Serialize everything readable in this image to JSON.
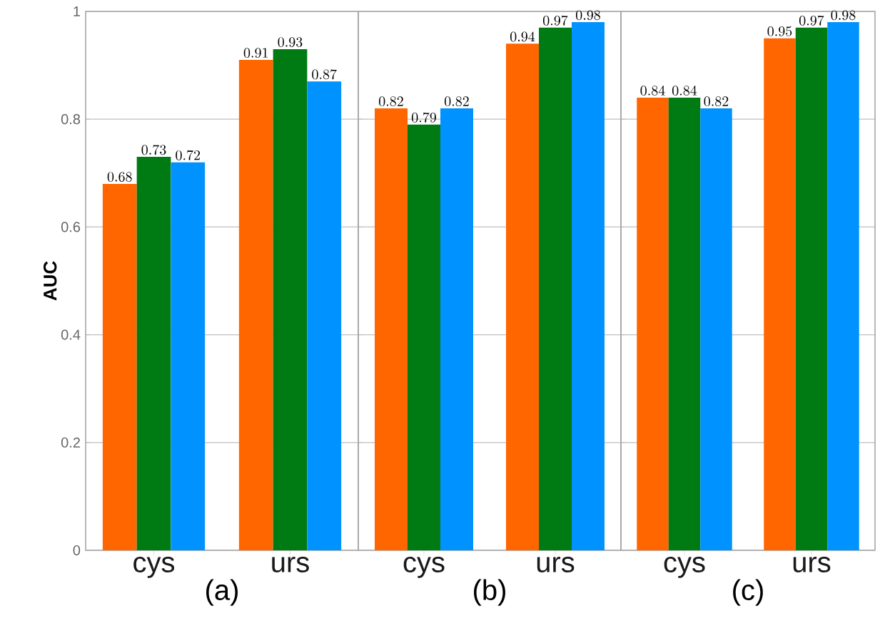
{
  "chart_data": [
    {
      "type": "bar",
      "xlabel": "(a)",
      "ylabel": "AUC",
      "categories": [
        "cys",
        "urs"
      ],
      "series": [
        {
          "color": "#ff6600",
          "values": [
            0.68,
            0.91
          ]
        },
        {
          "color": "#007a12",
          "values": [
            0.73,
            0.93
          ]
        },
        {
          "color": "#0093ff",
          "values": [
            0.72,
            0.87
          ]
        }
      ],
      "ylim": [
        0,
        1
      ],
      "yticks": [
        0,
        0.2,
        0.4,
        0.6,
        0.8,
        1
      ],
      "grid": "y",
      "data_labels": true
    },
    {
      "type": "bar",
      "xlabel": "(b)",
      "categories": [
        "cys",
        "urs"
      ],
      "series": [
        {
          "color": "#ff6600",
          "values": [
            0.82,
            0.94
          ]
        },
        {
          "color": "#007a12",
          "values": [
            0.79,
            0.97
          ]
        },
        {
          "color": "#0093ff",
          "values": [
            0.82,
            0.98
          ]
        }
      ],
      "ylim": [
        0,
        1
      ],
      "yticks": [
        0,
        0.2,
        0.4,
        0.6,
        0.8,
        1
      ],
      "grid": "y",
      "data_labels": true,
      "tick_labels": "x"
    },
    {
      "type": "bar",
      "xlabel": "(c)",
      "categories": [
        "cys",
        "urs"
      ],
      "series": [
        {
          "color": "#ff6600",
          "values": [
            0.84,
            0.95
          ]
        },
        {
          "color": "#007a12",
          "values": [
            0.84,
            0.97
          ]
        },
        {
          "color": "#0093ff",
          "values": [
            0.82,
            0.98
          ]
        }
      ],
      "ylim": [
        0,
        1
      ],
      "yticks": [
        0,
        0.2,
        0.4,
        0.6,
        0.8,
        1
      ],
      "grid": "y",
      "data_labels": true,
      "tick_labels": "x"
    }
  ]
}
